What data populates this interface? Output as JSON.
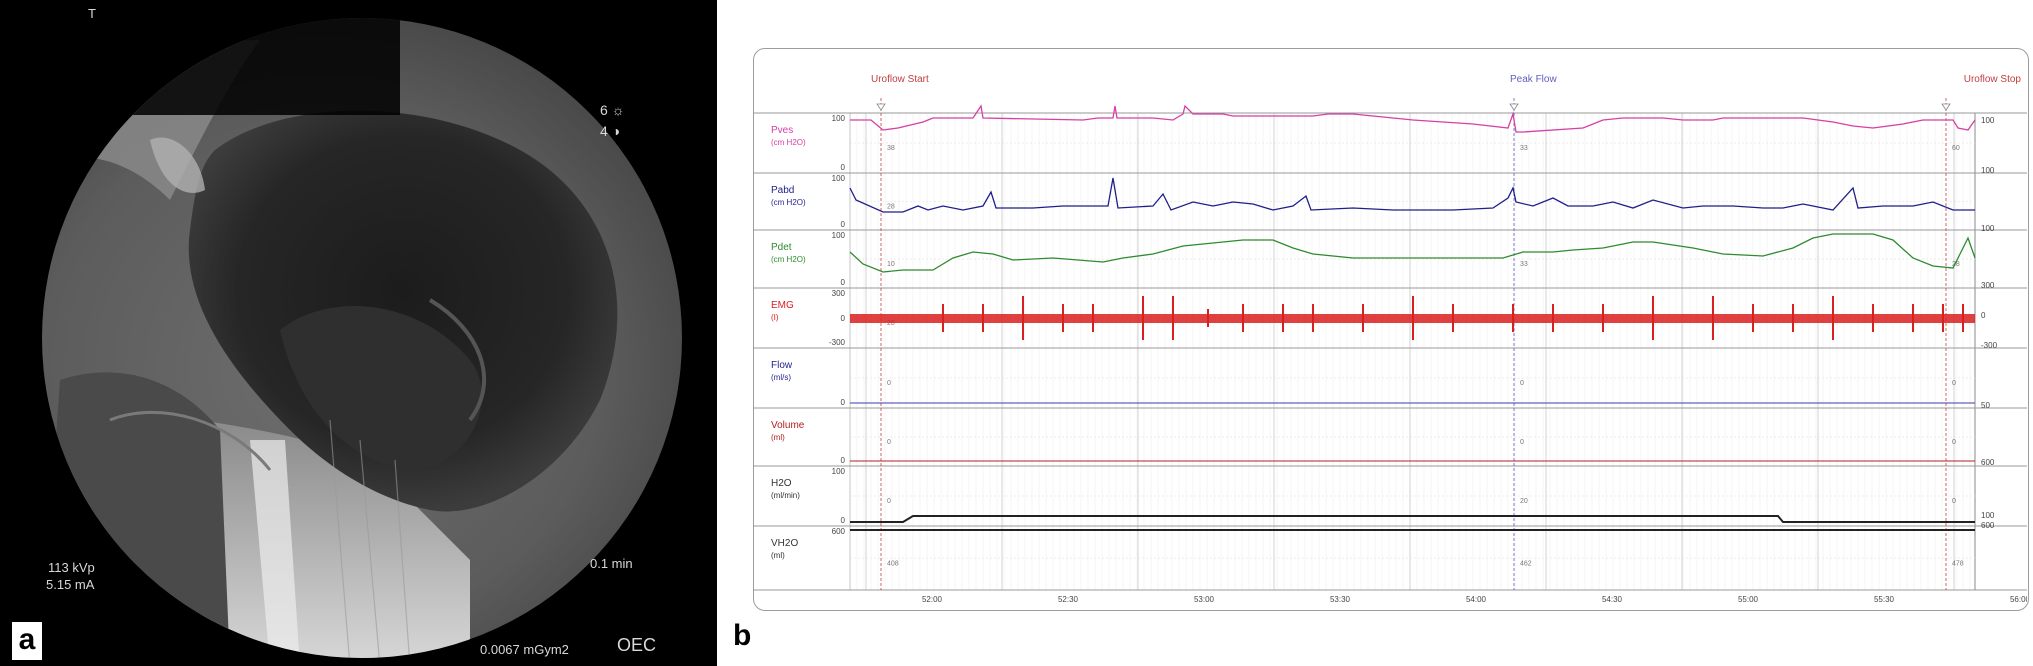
{
  "panel_a": {
    "panel_letter": "a",
    "top_marker": "T",
    "brightness_level": "6",
    "contrast_level": "4",
    "icons": [
      "sun-brightness-icon",
      "half-circle-contrast-icon"
    ],
    "kvp": "113 kVp",
    "ma": "5.15 mA",
    "time": "0.1 min",
    "dose": "0.0067 mGym2",
    "brand": "OEC"
  },
  "panel_b": {
    "panel_letter": "b",
    "markers": [
      "Uroflow Start",
      "Peak Flow",
      "Uroflow Stop"
    ],
    "channels": [
      {
        "name": "Pves",
        "unit": "(cm H2O)",
        "color": "#d63fa6",
        "scale_top": "100",
        "scale_bottom": "0",
        "values": [
          "38",
          "33",
          "60"
        ]
      },
      {
        "name": "Pabd",
        "unit": "(cm H2O)",
        "color": "#1f1f8c",
        "scale_top": "100",
        "scale_bottom": "0",
        "values": [
          "28",
          "",
          ""
        ]
      },
      {
        "name": "Pdet",
        "unit": "(cm H2O)",
        "color": "#2e8b2e",
        "scale_top": "100",
        "scale_bottom": "0",
        "values": [
          "10",
          "33",
          "28"
        ]
      },
      {
        "name": "EMG",
        "unit": "(I)",
        "color": "#d92020",
        "scale_top": "300",
        "scale_mid": "0",
        "scale_bottom": "-300",
        "values": [
          "28",
          "",
          ""
        ]
      },
      {
        "name": "Flow",
        "unit": "(ml/s)",
        "color": "#1f1f8c",
        "scale_top": "",
        "scale_bottom": "0",
        "values": [
          "0",
          "0",
          "0"
        ]
      },
      {
        "name": "Volume",
        "unit": "(ml)",
        "color": "#b02020",
        "scale_top": "",
        "scale_bottom": "0",
        "values": [
          "0",
          "0",
          "0"
        ]
      },
      {
        "name": "H2O",
        "unit": "(ml/min)",
        "color": "#333333",
        "scale_top": "100",
        "scale_bottom": "0",
        "values": [
          "0",
          "20",
          "0"
        ]
      },
      {
        "name": "VH2O",
        "unit": "(ml)",
        "color": "#333333",
        "scale_top": "600",
        "scale_bottom": "",
        "values": [
          "408",
          "462",
          "478"
        ]
      }
    ],
    "right_scale": [
      "100",
      "100",
      "100",
      "300",
      "0",
      "-300",
      "50",
      "600",
      "100",
      "600"
    ],
    "time_ticks": [
      "52:00",
      "52:30",
      "53:00",
      "53:30",
      "54:00",
      "54:30",
      "55:00",
      "55:30",
      "56:00"
    ]
  }
}
